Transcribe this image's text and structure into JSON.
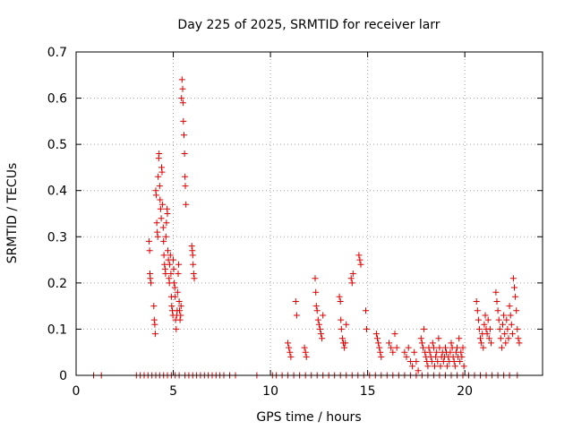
{
  "chart_data": {
    "type": "scatter",
    "title": "Day 225 of 2025, SRMTID for receiver larr",
    "xlabel": "GPS time / hours",
    "ylabel": "SRMTID / TECUs",
    "xlim": [
      0,
      24
    ],
    "ylim": [
      0,
      0.7
    ],
    "xticks": [
      0,
      5,
      10,
      15,
      20
    ],
    "yticks": [
      0,
      0.1,
      0.2,
      0.3,
      0.4,
      0.5,
      0.6,
      0.7
    ],
    "grid": true,
    "marker": "+",
    "color": "#dd0000",
    "series": [
      {
        "name": "SRMTID",
        "points": [
          [
            0.9,
            0
          ],
          [
            1.3,
            0
          ],
          [
            3.1,
            0
          ],
          [
            3.3,
            0
          ],
          [
            3.5,
            0
          ],
          [
            3.7,
            0
          ],
          [
            3.9,
            0
          ],
          [
            4.1,
            0
          ],
          [
            4.3,
            0
          ],
          [
            4.5,
            0
          ],
          [
            4.7,
            0
          ],
          [
            4.9,
            0
          ],
          [
            5.1,
            0
          ],
          [
            5.3,
            0
          ],
          [
            5.6,
            0
          ],
          [
            5.8,
            0
          ],
          [
            6.0,
            0
          ],
          [
            6.2,
            0
          ],
          [
            6.4,
            0
          ],
          [
            6.6,
            0
          ],
          [
            6.8,
            0
          ],
          [
            7.0,
            0
          ],
          [
            7.2,
            0
          ],
          [
            7.4,
            0
          ],
          [
            7.6,
            0
          ],
          [
            7.9,
            0
          ],
          [
            8.2,
            0
          ],
          [
            9.3,
            0
          ],
          [
            10.1,
            0
          ],
          [
            10.3,
            0
          ],
          [
            10.6,
            0
          ],
          [
            10.9,
            0
          ],
          [
            11.2,
            0
          ],
          [
            11.5,
            0
          ],
          [
            11.8,
            0
          ],
          [
            12.1,
            0
          ],
          [
            12.4,
            0
          ],
          [
            12.7,
            0
          ],
          [
            13.0,
            0
          ],
          [
            13.3,
            0
          ],
          [
            13.6,
            0
          ],
          [
            13.9,
            0
          ],
          [
            14.2,
            0
          ],
          [
            14.5,
            0
          ],
          [
            14.8,
            0
          ],
          [
            15.1,
            0
          ],
          [
            15.4,
            0
          ],
          [
            15.7,
            0
          ],
          [
            16.0,
            0
          ],
          [
            16.3,
            0
          ],
          [
            16.6,
            0
          ],
          [
            16.9,
            0
          ],
          [
            17.2,
            0
          ],
          [
            17.5,
            0
          ],
          [
            17.8,
            0
          ],
          [
            18.1,
            0
          ],
          [
            18.4,
            0
          ],
          [
            18.7,
            0
          ],
          [
            19.0,
            0
          ],
          [
            19.3,
            0
          ],
          [
            19.6,
            0
          ],
          [
            19.9,
            0
          ],
          [
            20.2,
            0
          ],
          [
            20.5,
            0
          ],
          [
            20.8,
            0
          ],
          [
            21.1,
            0
          ],
          [
            21.4,
            0
          ],
          [
            21.7,
            0
          ],
          [
            22.0,
            0
          ],
          [
            22.3,
            0
          ],
          [
            22.7,
            0
          ],
          [
            3.75,
            0.29
          ],
          [
            3.78,
            0.27
          ],
          [
            3.8,
            0.22
          ],
          [
            3.82,
            0.21
          ],
          [
            3.85,
            0.2
          ],
          [
            4.0,
            0.15
          ],
          [
            4.02,
            0.12
          ],
          [
            4.05,
            0.11
          ],
          [
            4.07,
            0.09
          ],
          [
            4.1,
            0.4
          ],
          [
            4.12,
            0.39
          ],
          [
            4.15,
            0.33
          ],
          [
            4.18,
            0.31
          ],
          [
            4.2,
            0.3
          ],
          [
            4.22,
            0.43
          ],
          [
            4.25,
            0.47
          ],
          [
            4.27,
            0.48
          ],
          [
            4.3,
            0.41
          ],
          [
            4.32,
            0.38
          ],
          [
            4.35,
            0.36
          ],
          [
            4.38,
            0.34
          ],
          [
            4.4,
            0.45
          ],
          [
            4.42,
            0.44
          ],
          [
            4.45,
            0.37
          ],
          [
            4.48,
            0.32
          ],
          [
            4.5,
            0.29
          ],
          [
            4.52,
            0.26
          ],
          [
            4.55,
            0.24
          ],
          [
            4.58,
            0.23
          ],
          [
            4.6,
            0.22
          ],
          [
            4.62,
            0.3
          ],
          [
            4.65,
            0.33
          ],
          [
            4.68,
            0.36
          ],
          [
            4.7,
            0.35
          ],
          [
            4.72,
            0.27
          ],
          [
            4.75,
            0.25
          ],
          [
            4.78,
            0.21
          ],
          [
            4.8,
            0.2
          ],
          [
            4.82,
            0.24
          ],
          [
            4.85,
            0.26
          ],
          [
            4.88,
            0.22
          ],
          [
            4.9,
            0.17
          ],
          [
            4.92,
            0.15
          ],
          [
            4.95,
            0.14
          ],
          [
            4.98,
            0.13
          ],
          [
            5.0,
            0.25
          ],
          [
            5.02,
            0.23
          ],
          [
            5.05,
            0.2
          ],
          [
            5.08,
            0.19
          ],
          [
            5.1,
            0.17
          ],
          [
            5.12,
            0.12
          ],
          [
            5.15,
            0.1
          ],
          [
            5.18,
            0.13
          ],
          [
            5.2,
            0.14
          ],
          [
            5.22,
            0.18
          ],
          [
            5.25,
            0.22
          ],
          [
            5.28,
            0.24
          ],
          [
            5.3,
            0.16
          ],
          [
            5.32,
            0.14
          ],
          [
            5.35,
            0.12
          ],
          [
            5.38,
            0.13
          ],
          [
            5.4,
            0.15
          ],
          [
            5.42,
            0.6
          ],
          [
            5.45,
            0.64
          ],
          [
            5.48,
            0.62
          ],
          [
            5.5,
            0.59
          ],
          [
            5.52,
            0.55
          ],
          [
            5.55,
            0.52
          ],
          [
            5.58,
            0.48
          ],
          [
            5.6,
            0.43
          ],
          [
            5.62,
            0.41
          ],
          [
            5.65,
            0.37
          ],
          [
            5.95,
            0.28
          ],
          [
            5.98,
            0.27
          ],
          [
            6.0,
            0.26
          ],
          [
            6.02,
            0.24
          ],
          [
            6.05,
            0.22
          ],
          [
            6.08,
            0.21
          ],
          [
            10.9,
            0.07
          ],
          [
            10.95,
            0.06
          ],
          [
            11.0,
            0.05
          ],
          [
            11.05,
            0.04
          ],
          [
            11.3,
            0.16
          ],
          [
            11.35,
            0.13
          ],
          [
            11.75,
            0.06
          ],
          [
            11.8,
            0.05
          ],
          [
            11.85,
            0.04
          ],
          [
            12.3,
            0.21
          ],
          [
            12.33,
            0.18
          ],
          [
            12.36,
            0.15
          ],
          [
            12.4,
            0.14
          ],
          [
            12.45,
            0.12
          ],
          [
            12.5,
            0.11
          ],
          [
            12.55,
            0.1
          ],
          [
            12.6,
            0.09
          ],
          [
            12.65,
            0.08
          ],
          [
            12.7,
            0.13
          ],
          [
            13.55,
            0.17
          ],
          [
            13.6,
            0.16
          ],
          [
            13.62,
            0.12
          ],
          [
            13.65,
            0.1
          ],
          [
            13.7,
            0.08
          ],
          [
            13.75,
            0.07
          ],
          [
            13.8,
            0.06
          ],
          [
            13.85,
            0.07
          ],
          [
            13.9,
            0.11
          ],
          [
            14.15,
            0.21
          ],
          [
            14.2,
            0.2
          ],
          [
            14.25,
            0.22
          ],
          [
            14.55,
            0.26
          ],
          [
            14.6,
            0.25
          ],
          [
            14.65,
            0.24
          ],
          [
            14.9,
            0.14
          ],
          [
            14.95,
            0.1
          ],
          [
            15.45,
            0.09
          ],
          [
            15.5,
            0.08
          ],
          [
            15.55,
            0.07
          ],
          [
            15.6,
            0.06
          ],
          [
            15.65,
            0.05
          ],
          [
            15.7,
            0.04
          ],
          [
            16.1,
            0.07
          ],
          [
            16.2,
            0.06
          ],
          [
            16.3,
            0.05
          ],
          [
            16.4,
            0.09
          ],
          [
            16.5,
            0.06
          ],
          [
            16.9,
            0.05
          ],
          [
            17.0,
            0.04
          ],
          [
            17.1,
            0.06
          ],
          [
            17.2,
            0.03
          ],
          [
            17.3,
            0.02
          ],
          [
            17.4,
            0.05
          ],
          [
            17.5,
            0.03
          ],
          [
            17.6,
            0.01
          ],
          [
            17.75,
            0.08
          ],
          [
            17.8,
            0.07
          ],
          [
            17.85,
            0.06
          ],
          [
            17.9,
            0.1
          ],
          [
            17.95,
            0.05
          ],
          [
            18.0,
            0.04
          ],
          [
            18.05,
            0.03
          ],
          [
            18.1,
            0.02
          ],
          [
            18.15,
            0.06
          ],
          [
            18.2,
            0.05
          ],
          [
            18.25,
            0.04
          ],
          [
            18.3,
            0.03
          ],
          [
            18.35,
            0.07
          ],
          [
            18.4,
            0.06
          ],
          [
            18.45,
            0.02
          ],
          [
            18.5,
            0.04
          ],
          [
            18.55,
            0.05
          ],
          [
            18.6,
            0.03
          ],
          [
            18.65,
            0.08
          ],
          [
            18.7,
            0.06
          ],
          [
            18.75,
            0.02
          ],
          [
            18.8,
            0.04
          ],
          [
            18.85,
            0.05
          ],
          [
            18.9,
            0.03
          ],
          [
            18.95,
            0.04
          ],
          [
            19.0,
            0.06
          ],
          [
            19.05,
            0.05
          ],
          [
            19.1,
            0.02
          ],
          [
            19.15,
            0.04
          ],
          [
            19.2,
            0.03
          ],
          [
            19.25,
            0.05
          ],
          [
            19.3,
            0.07
          ],
          [
            19.35,
            0.06
          ],
          [
            19.4,
            0.04
          ],
          [
            19.45,
            0.03
          ],
          [
            19.5,
            0.02
          ],
          [
            19.55,
            0.05
          ],
          [
            19.6,
            0.06
          ],
          [
            19.65,
            0.04
          ],
          [
            19.7,
            0.08
          ],
          [
            19.75,
            0.03
          ],
          [
            19.8,
            0.05
          ],
          [
            19.85,
            0.04
          ],
          [
            19.9,
            0.06
          ],
          [
            19.95,
            0.02
          ],
          [
            20.6,
            0.16
          ],
          [
            20.65,
            0.14
          ],
          [
            20.7,
            0.12
          ],
          [
            20.75,
            0.1
          ],
          [
            20.8,
            0.08
          ],
          [
            20.85,
            0.07
          ],
          [
            20.9,
            0.09
          ],
          [
            20.95,
            0.06
          ],
          [
            21.0,
            0.11
          ],
          [
            21.05,
            0.13
          ],
          [
            21.1,
            0.1
          ],
          [
            21.15,
            0.09
          ],
          [
            21.2,
            0.12
          ],
          [
            21.25,
            0.08
          ],
          [
            21.3,
            0.1
          ],
          [
            21.35,
            0.07
          ],
          [
            21.6,
            0.18
          ],
          [
            21.65,
            0.16
          ],
          [
            21.7,
            0.14
          ],
          [
            21.75,
            0.12
          ],
          [
            21.8,
            0.1
          ],
          [
            21.85,
            0.08
          ],
          [
            21.9,
            0.06
          ],
          [
            21.95,
            0.11
          ],
          [
            22.0,
            0.13
          ],
          [
            22.05,
            0.09
          ],
          [
            22.1,
            0.07
          ],
          [
            22.15,
            0.12
          ],
          [
            22.2,
            0.1
          ],
          [
            22.25,
            0.08
          ],
          [
            22.3,
            0.15
          ],
          [
            22.35,
            0.13
          ],
          [
            22.4,
            0.11
          ],
          [
            22.45,
            0.09
          ],
          [
            22.5,
            0.21
          ],
          [
            22.55,
            0.19
          ],
          [
            22.6,
            0.17
          ],
          [
            22.65,
            0.14
          ],
          [
            22.7,
            0.1
          ],
          [
            22.75,
            0.08
          ],
          [
            22.8,
            0.07
          ]
        ]
      }
    ]
  }
}
